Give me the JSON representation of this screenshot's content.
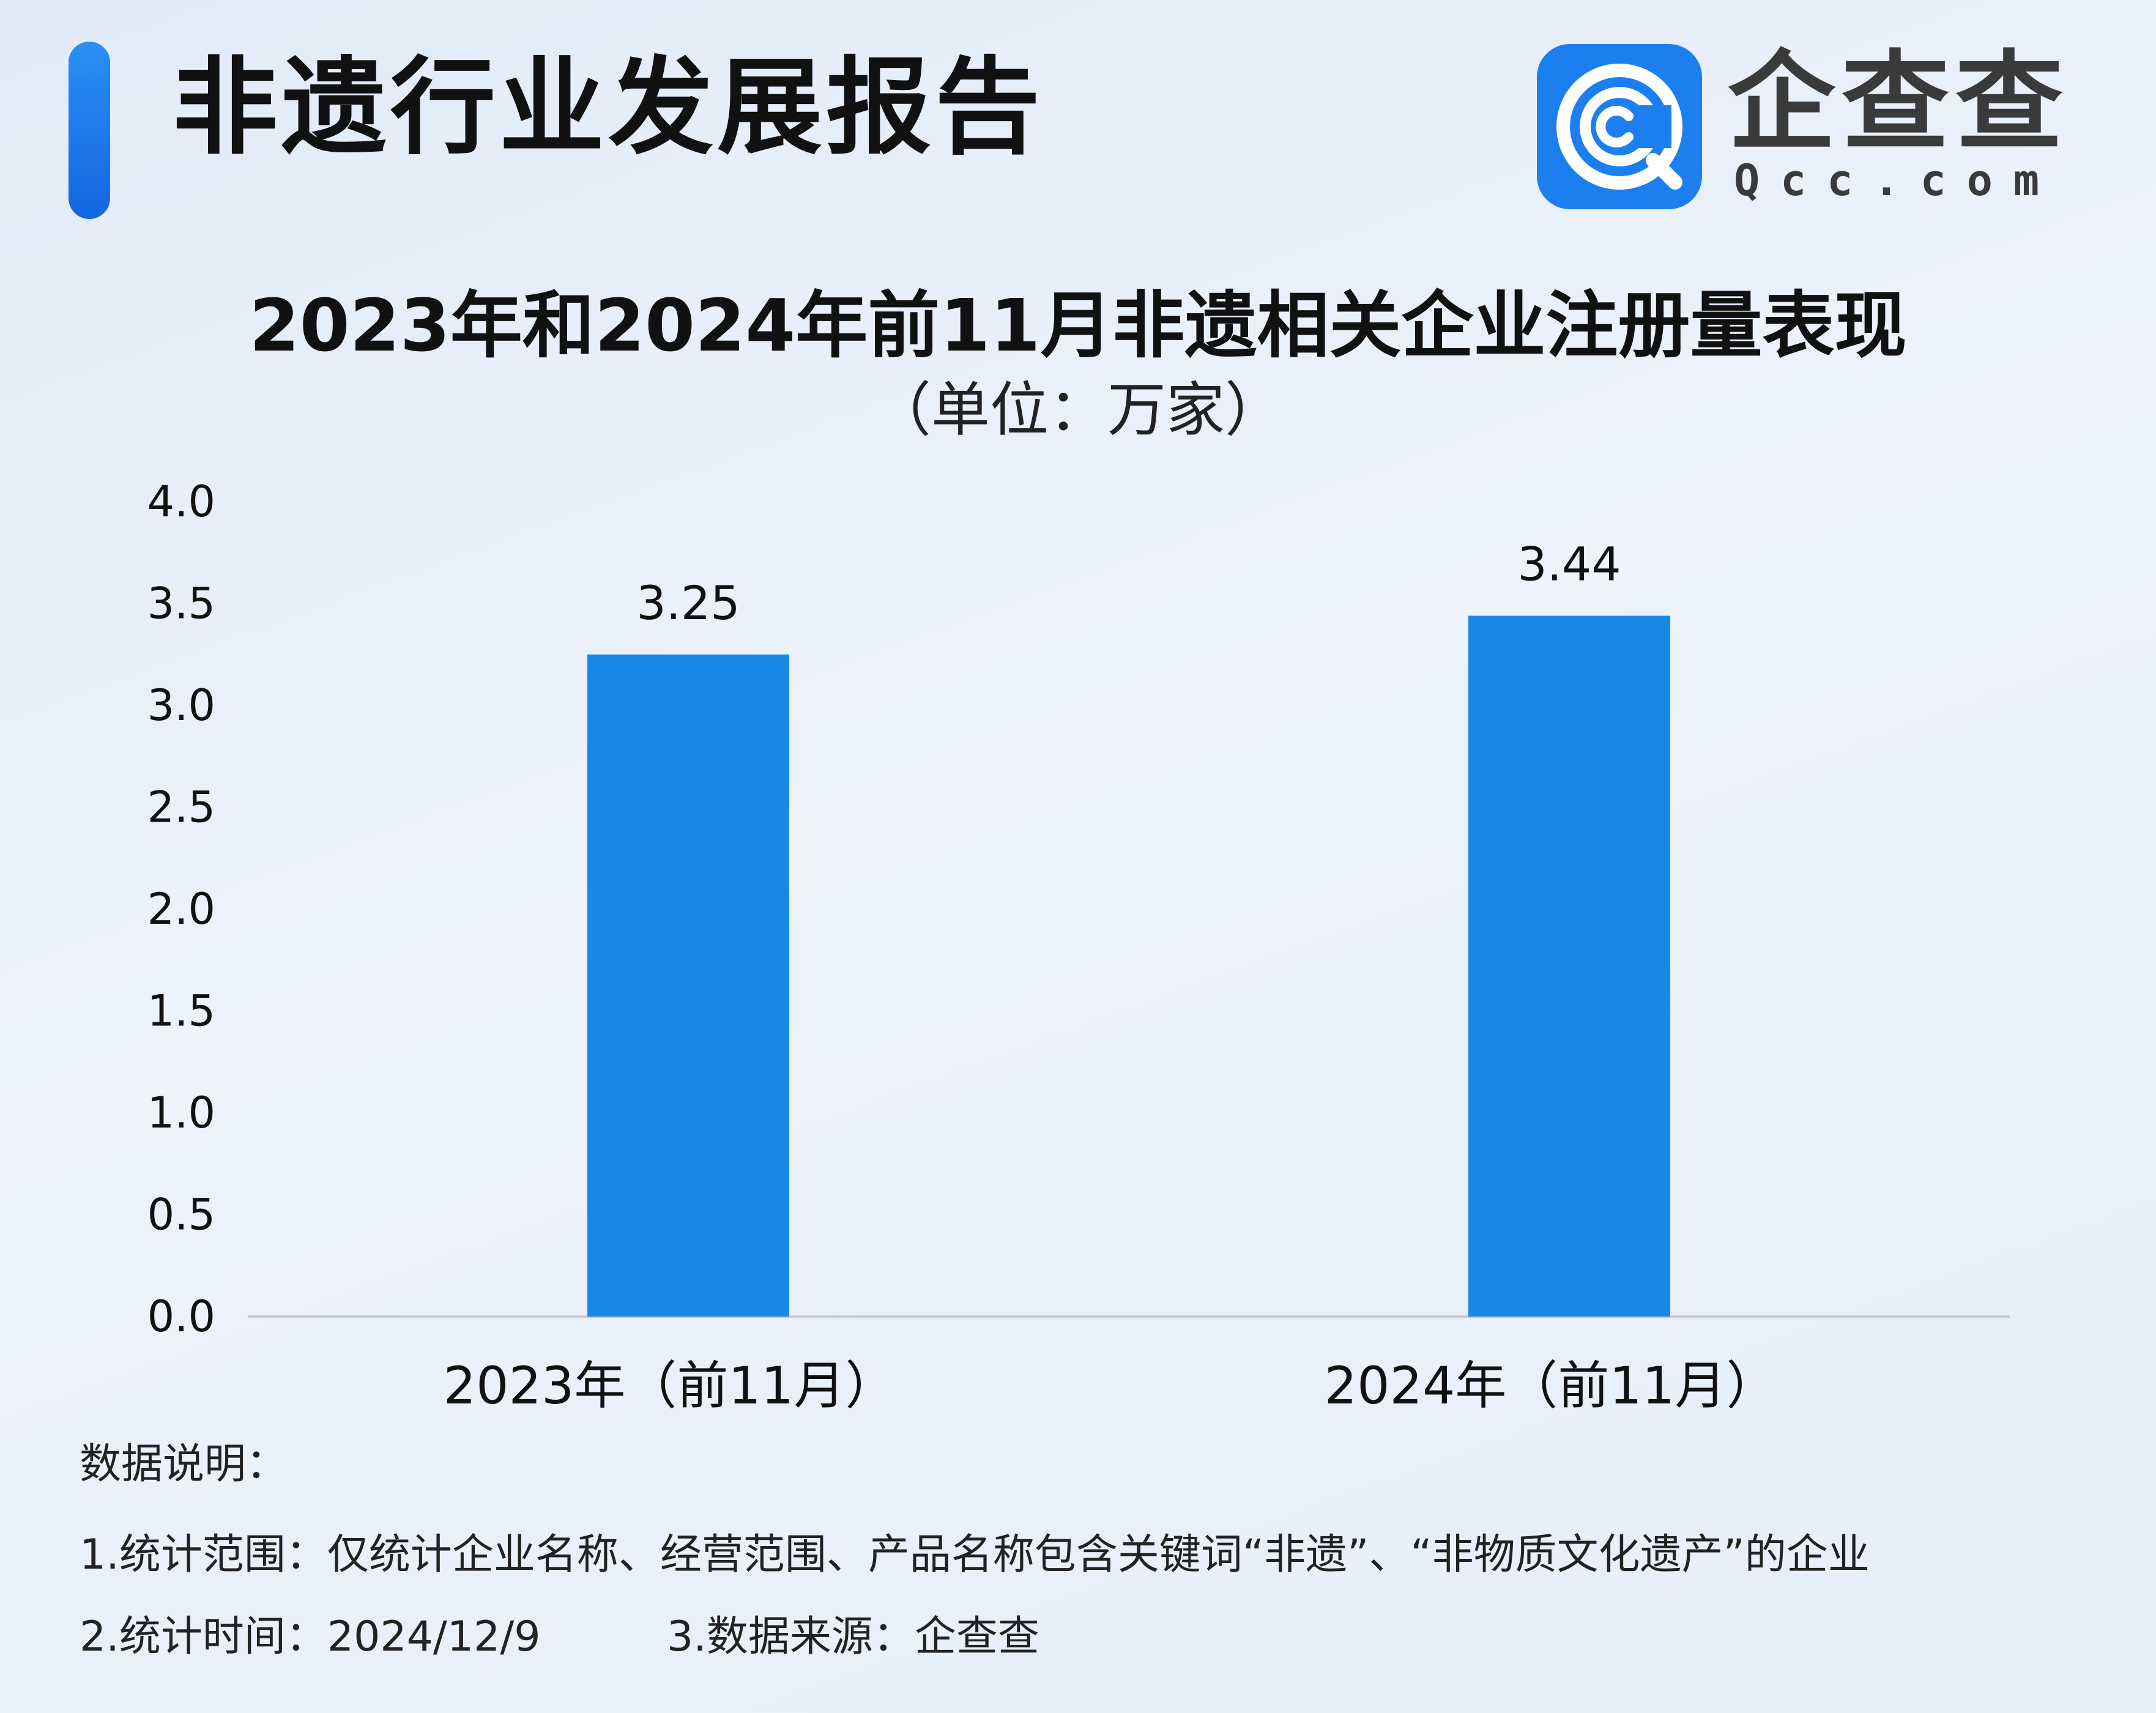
{
  "header": {
    "title": "非遗行业发展报告"
  },
  "logo": {
    "name": "企查查",
    "domain": "Qcc.com"
  },
  "chart_data": {
    "type": "bar",
    "title": "2023年和2024年前11月非遗相关企业注册量表现",
    "subtitle": "（单位：万家）",
    "categories": [
      "2023年（前11月）",
      "2024年（前11月）"
    ],
    "values": [
      3.25,
      3.44
    ],
    "data_labels": [
      "3.25",
      "3.44"
    ],
    "ylim": [
      0,
      4.0
    ],
    "yticks": [
      "0.0",
      "0.5",
      "1.0",
      "1.5",
      "2.0",
      "2.5",
      "3.0",
      "3.5",
      "4.0"
    ],
    "grid": false,
    "bar_color": "#1989e8"
  },
  "notes": {
    "heading": "数据说明：",
    "scope": "1.统计范围：仅统计企业名称、经营范围、产品名称包含关键词“非遗”、“非物质文化遗产”的企业",
    "time": "2.统计时间：2024/12/9",
    "source": "3.数据来源：企查查"
  },
  "colors": {
    "accent": "#1c7ff0",
    "bar": "#1989e8",
    "text": "#111111"
  }
}
